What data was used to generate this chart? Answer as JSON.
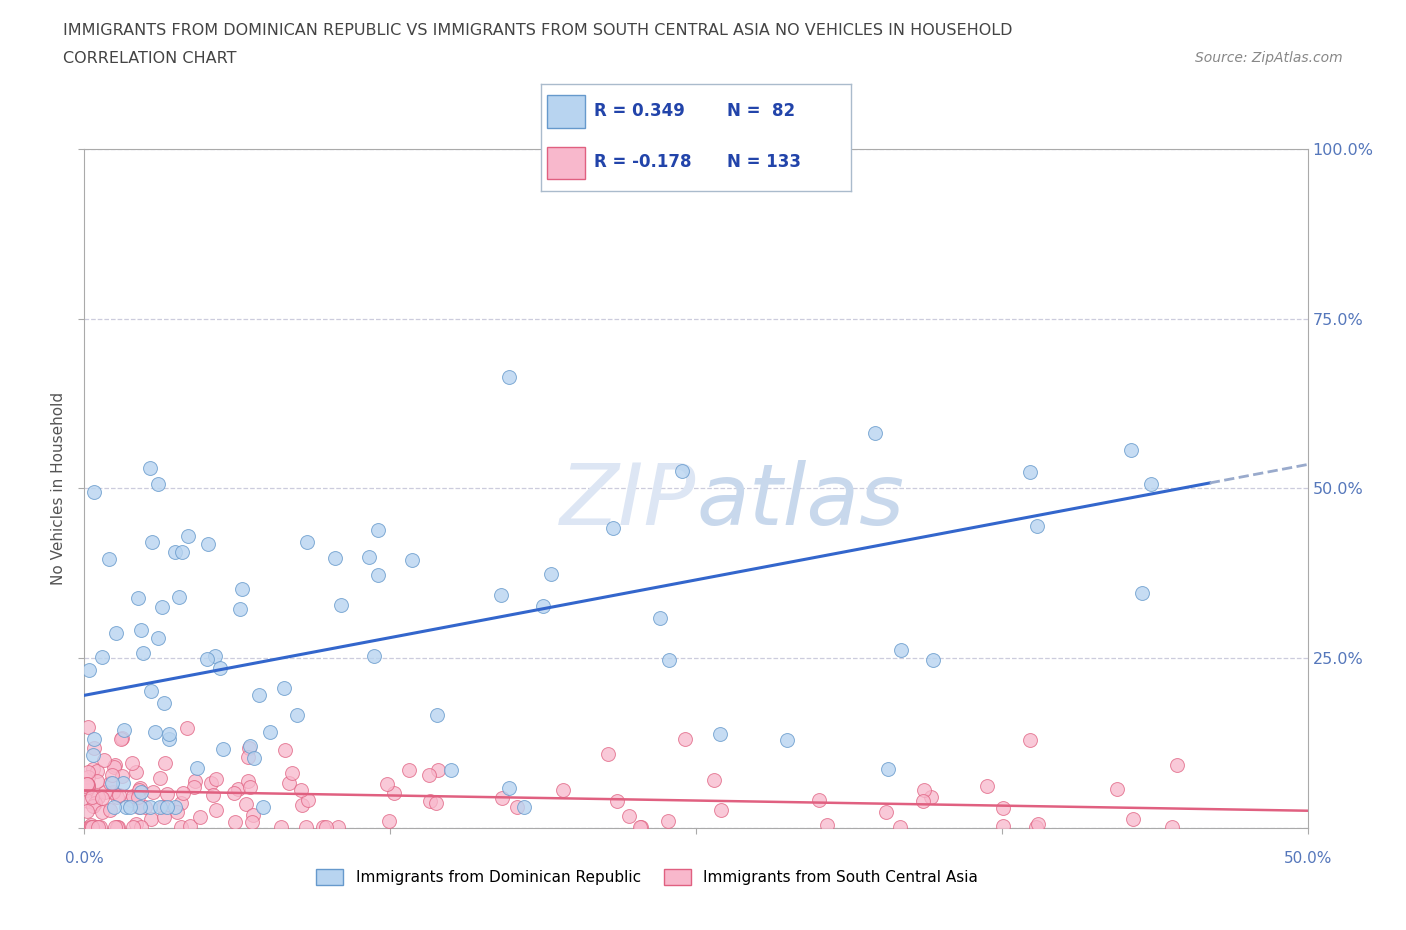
{
  "title_line1": "IMMIGRANTS FROM DOMINICAN REPUBLIC VS IMMIGRANTS FROM SOUTH CENTRAL ASIA NO VEHICLES IN HOUSEHOLD",
  "title_line2": "CORRELATION CHART",
  "source_text": "Source: ZipAtlas.com",
  "ylabel": "No Vehicles in Household",
  "xlim": [
    0.0,
    0.5
  ],
  "ylim": [
    0.0,
    1.0
  ],
  "xtick_values": [
    0.0,
    0.125,
    0.25,
    0.375,
    0.5
  ],
  "ytick_values": [
    0.0,
    0.25,
    0.5,
    0.75,
    1.0
  ],
  "right_ytick_values": [
    0.25,
    0.5,
    0.75,
    1.0
  ],
  "blue_fill": "#b8d4f0",
  "blue_edge": "#6699cc",
  "pink_fill": "#f8b8cc",
  "pink_edge": "#e06080",
  "blue_line_color": "#3366cc",
  "blue_dash_color": "#99aacc",
  "pink_line_color": "#e06080",
  "legend_R1": "R = 0.349",
  "legend_N1": "N =  82",
  "legend_R2": "R = -0.178",
  "legend_N2": "N = 133",
  "legend_label1": "Immigrants from Dominican Republic",
  "legend_label2": "Immigrants from South Central Asia",
  "grid_color": "#ccccdd",
  "bg_color": "#ffffff",
  "title_color": "#444444",
  "axis_label_color": "#5577bb",
  "source_color": "#888888",
  "blue_trend_x0": 0.0,
  "blue_trend_y0": 0.195,
  "blue_trend_x1": 0.5,
  "blue_trend_y1": 0.535,
  "pink_trend_x0": 0.0,
  "pink_trend_y0": 0.055,
  "pink_trend_x1": 0.5,
  "pink_trend_y1": 0.025,
  "marker_size": 100
}
